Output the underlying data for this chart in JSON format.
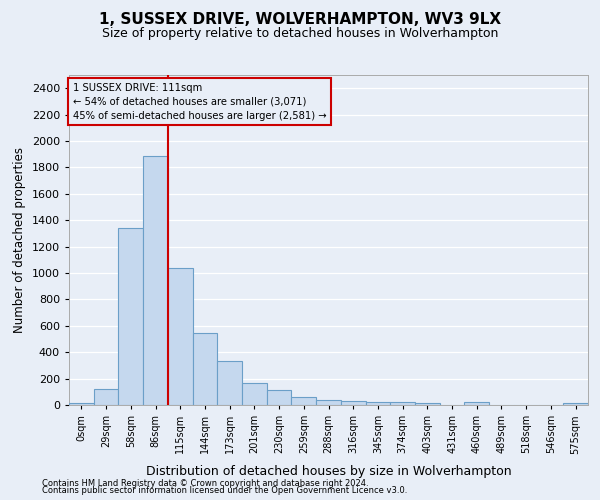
{
  "title": "1, SUSSEX DRIVE, WOLVERHAMPTON, WV3 9LX",
  "subtitle": "Size of property relative to detached houses in Wolverhampton",
  "xlabel": "Distribution of detached houses by size in Wolverhampton",
  "ylabel": "Number of detached properties",
  "footnote1": "Contains HM Land Registry data © Crown copyright and database right 2024.",
  "footnote2": "Contains public sector information licensed under the Open Government Licence v3.0.",
  "bin_labels": [
    "0sqm",
    "29sqm",
    "58sqm",
    "86sqm",
    "115sqm",
    "144sqm",
    "173sqm",
    "201sqm",
    "230sqm",
    "259sqm",
    "288sqm",
    "316sqm",
    "345sqm",
    "374sqm",
    "403sqm",
    "431sqm",
    "460sqm",
    "489sqm",
    "518sqm",
    "546sqm",
    "575sqm"
  ],
  "bar_heights": [
    15,
    125,
    1340,
    1890,
    1040,
    545,
    335,
    170,
    110,
    60,
    40,
    30,
    25,
    20,
    15,
    0,
    20,
    0,
    0,
    0,
    15
  ],
  "bar_color": "#c5d8ee",
  "bar_edge_color": "#6b9fc8",
  "ylim": [
    0,
    2500
  ],
  "yticks": [
    0,
    200,
    400,
    600,
    800,
    1000,
    1200,
    1400,
    1600,
    1800,
    2000,
    2200,
    2400
  ],
  "property_line_bin": 4,
  "property_line_color": "#cc0000",
  "annotation_line1": "1 SUSSEX DRIVE: 111sqm",
  "annotation_line2": "← 54% of detached houses are smaller (3,071)",
  "annotation_line3": "45% of semi-detached houses are larger (2,581) →",
  "annotation_box_edgecolor": "#cc0000",
  "background_color": "#e8eef7",
  "grid_color": "#d0d8e8",
  "plot_bg_color": "#dce6f4"
}
